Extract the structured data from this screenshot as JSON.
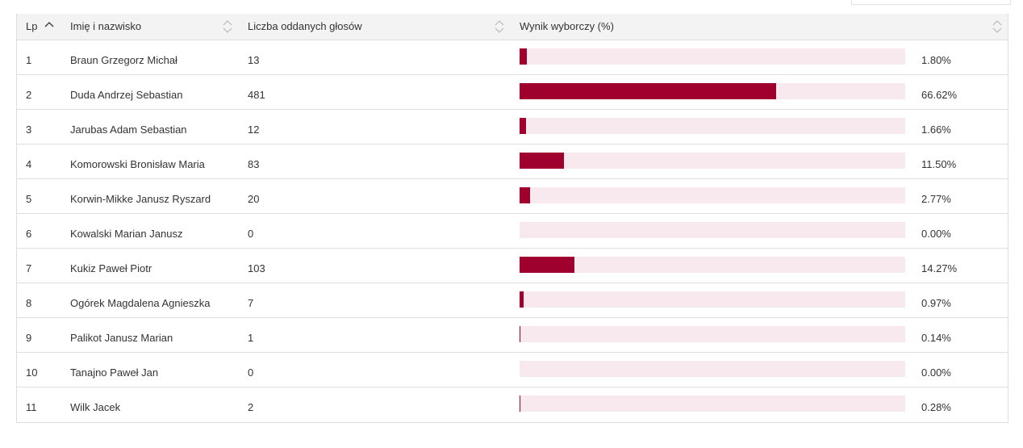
{
  "colors": {
    "accent": "#a0002e",
    "bar_track": "#f7e9ee",
    "header_bg": "#f3f3f3",
    "border": "#dedede"
  },
  "table": {
    "headers": {
      "lp": "Lp",
      "name": "Imię i nazwisko",
      "votes": "Liczba oddanych głosów",
      "result": "Wynik wyborczy (%)"
    },
    "rows": [
      {
        "lp": "1",
        "name": "Braun Grzegorz Michał",
        "votes": "13",
        "pct": "1.80%",
        "pct_value": 1.8
      },
      {
        "lp": "2",
        "name": "Duda Andrzej Sebastian",
        "votes": "481",
        "pct": "66.62%",
        "pct_value": 66.62
      },
      {
        "lp": "3",
        "name": "Jarubas Adam Sebastian",
        "votes": "12",
        "pct": "1.66%",
        "pct_value": 1.66
      },
      {
        "lp": "4",
        "name": "Komorowski Bronisław Maria",
        "votes": "83",
        "pct": "11.50%",
        "pct_value": 11.5
      },
      {
        "lp": "5",
        "name": "Korwin-Mikke Janusz Ryszard",
        "votes": "20",
        "pct": "2.77%",
        "pct_value": 2.77
      },
      {
        "lp": "6",
        "name": "Kowalski Marian Janusz",
        "votes": "0",
        "pct": "0.00%",
        "pct_value": 0.0
      },
      {
        "lp": "7",
        "name": "Kukiz Paweł Piotr",
        "votes": "103",
        "pct": "14.27%",
        "pct_value": 14.27
      },
      {
        "lp": "8",
        "name": "Ogórek Magdalena Agnieszka",
        "votes": "7",
        "pct": "0.97%",
        "pct_value": 0.97
      },
      {
        "lp": "9",
        "name": "Palikot Janusz Marian",
        "votes": "1",
        "pct": "0.14%",
        "pct_value": 0.14
      },
      {
        "lp": "10",
        "name": "Tanajno Paweł Jan",
        "votes": "0",
        "pct": "0.00%",
        "pct_value": 0.0
      },
      {
        "lp": "11",
        "name": "Wilk Jacek",
        "votes": "2",
        "pct": "0.28%",
        "pct_value": 0.28
      }
    ]
  }
}
